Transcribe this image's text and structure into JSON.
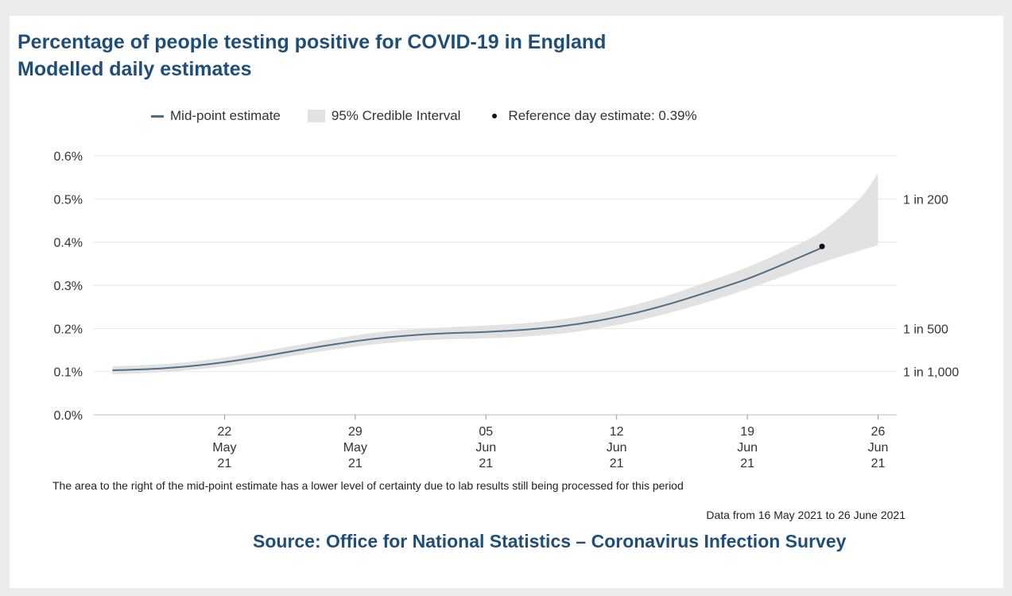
{
  "chart_data": {
    "type": "line",
    "title": "Percentage of people testing positive for COVID-19 in England",
    "subtitle": "Modelled daily estimates",
    "xlabel": "",
    "ylabel": "",
    "y_unit": "%",
    "ylim": [
      0,
      0.6
    ],
    "y_ticks": [
      0,
      0.1,
      0.2,
      0.3,
      0.4,
      0.5,
      0.6
    ],
    "y_tick_labels": [
      "0.0%",
      "0.1%",
      "0.2%",
      "0.3%",
      "0.4%",
      "0.5%",
      "0.6%"
    ],
    "xlim": [
      "2021-05-15",
      "2021-06-27"
    ],
    "x_ticks": [
      {
        "date": "2021-05-22",
        "day": "22",
        "month": "May",
        "year": "21"
      },
      {
        "date": "2021-05-29",
        "day": "29",
        "month": "May",
        "year": "21"
      },
      {
        "date": "2021-06-05",
        "day": "05",
        "month": "Jun",
        "year": "21"
      },
      {
        "date": "2021-06-12",
        "day": "12",
        "month": "Jun",
        "year": "21"
      },
      {
        "date": "2021-06-19",
        "day": "19",
        "month": "Jun",
        "year": "21"
      },
      {
        "date": "2021-06-26",
        "day": "26",
        "month": "Jun",
        "year": "21"
      }
    ],
    "secondary_axis": [
      {
        "value": 0.5,
        "label": "1 in 200"
      },
      {
        "value": 0.2,
        "label": "1 in 500"
      },
      {
        "value": 0.1,
        "label": "1 in 1,000"
      }
    ],
    "grid": true,
    "legend_position": "top",
    "series": [
      {
        "name": "Mid-point estimate",
        "color": "#4e6f8a",
        "x": [
          "2021-05-16",
          "2021-05-18",
          "2021-05-20",
          "2021-05-22",
          "2021-05-24",
          "2021-05-26",
          "2021-05-28",
          "2021-05-30",
          "2021-06-01",
          "2021-06-03",
          "2021-06-05",
          "2021-06-07",
          "2021-06-09",
          "2021-06-11",
          "2021-06-13",
          "2021-06-15",
          "2021-06-17",
          "2021-06-19",
          "2021-06-21",
          "2021-06-23"
        ],
        "values": [
          0.103,
          0.106,
          0.112,
          0.122,
          0.135,
          0.15,
          0.164,
          0.176,
          0.184,
          0.189,
          0.192,
          0.197,
          0.205,
          0.218,
          0.236,
          0.259,
          0.286,
          0.315,
          0.35,
          0.387
        ]
      }
    ],
    "interval": {
      "name": "95% Credible Interval",
      "color": "#e2e2e2",
      "x": [
        "2021-05-16",
        "2021-05-18",
        "2021-05-20",
        "2021-05-22",
        "2021-05-24",
        "2021-05-26",
        "2021-05-28",
        "2021-05-30",
        "2021-06-01",
        "2021-06-03",
        "2021-06-05",
        "2021-06-07",
        "2021-06-09",
        "2021-06-11",
        "2021-06-13",
        "2021-06-15",
        "2021-06-17",
        "2021-06-19",
        "2021-06-21",
        "2021-06-23",
        "2021-06-25",
        "2021-06-26"
      ],
      "lower": [
        0.094,
        0.097,
        0.103,
        0.112,
        0.124,
        0.139,
        0.152,
        0.163,
        0.171,
        0.175,
        0.177,
        0.181,
        0.188,
        0.2,
        0.217,
        0.238,
        0.263,
        0.291,
        0.322,
        0.353,
        0.38,
        0.393
      ],
      "upper": [
        0.112,
        0.116,
        0.122,
        0.133,
        0.147,
        0.162,
        0.177,
        0.19,
        0.198,
        0.203,
        0.207,
        0.212,
        0.221,
        0.235,
        0.255,
        0.28,
        0.31,
        0.342,
        0.38,
        0.425,
        0.5,
        0.56
      ]
    },
    "reference_point": {
      "name": "Reference day estimate: 0.39%",
      "date": "2021-06-23",
      "value": 0.39,
      "color": "#111111"
    }
  },
  "footer": {
    "note": "The area to the right of the mid-point estimate has a lower level of certainty due to lab results still being processed for this period",
    "range": "Data from 16 May 2021 to 26 June 2021",
    "source": "Source: Office for National Statistics – Coronavirus Infection Survey"
  }
}
